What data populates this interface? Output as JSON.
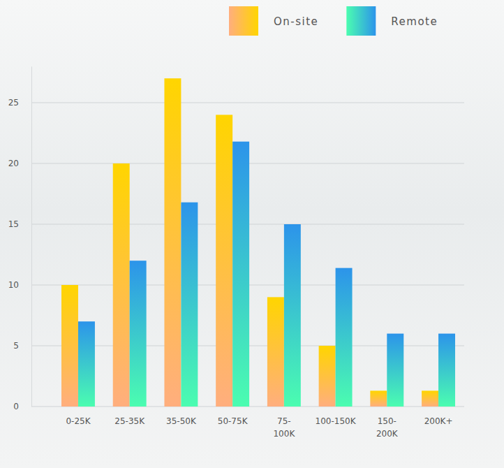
{
  "chart_data": {
    "type": "bar",
    "categories": [
      "0-25K",
      "25-35K",
      "35-50K",
      "50-75K",
      "75-\n100K",
      "100-150K",
      "150-\n200K",
      "200K+"
    ],
    "series": [
      {
        "name": "On-site",
        "color": "#ffd500",
        "values": [
          10,
          20,
          27,
          24,
          9,
          5,
          1.3,
          1.3
        ]
      },
      {
        "name": "Remote",
        "color": "#2c94ea",
        "values": [
          7,
          12,
          16.8,
          21.8,
          15,
          11.4,
          6,
          6
        ]
      }
    ],
    "ylim": [
      0,
      28
    ],
    "yticks": [
      0,
      5,
      10,
      15,
      20,
      25
    ],
    "grid": true,
    "legend": "top"
  }
}
